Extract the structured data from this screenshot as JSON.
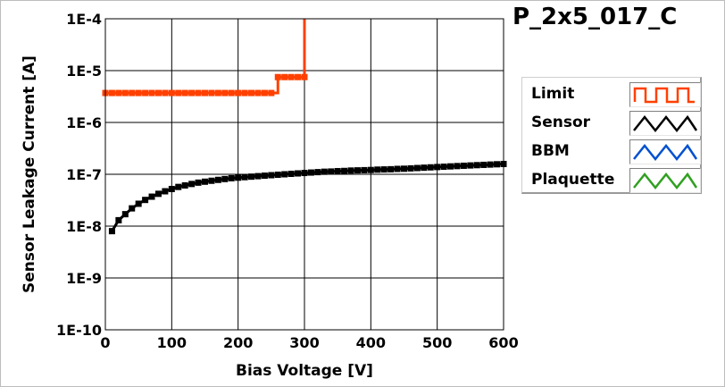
{
  "chart_data": {
    "type": "line",
    "title": "P_2x5_017_C",
    "xlabel": "Bias Voltage [V]",
    "ylabel": "Sensor Leakage Current [A]",
    "xlim": [
      0,
      600
    ],
    "ylim": [
      1e-10,
      0.0001
    ],
    "yscale": "log",
    "grid": true,
    "legend_position": "right",
    "x_ticks": [
      0,
      100,
      200,
      300,
      400,
      500,
      600
    ],
    "x_tick_labels": [
      "0",
      "100",
      "200",
      "300",
      "400",
      "500",
      "600"
    ],
    "y_ticks": [
      1e-10,
      1e-09,
      1e-08,
      1e-07,
      1e-06,
      1e-05,
      0.0001
    ],
    "y_tick_labels": [
      "1E-10",
      "1E-9",
      "1E-8",
      "1E-7",
      "1E-6",
      "1E-5",
      "1E-4"
    ],
    "series": [
      {
        "name": "Limit",
        "color": "#ff4000",
        "style": "step",
        "points": [
          [
            0,
            3.7e-06
          ],
          [
            10,
            3.7e-06
          ],
          [
            20,
            3.7e-06
          ],
          [
            30,
            3.7e-06
          ],
          [
            40,
            3.7e-06
          ],
          [
            50,
            3.7e-06
          ],
          [
            60,
            3.7e-06
          ],
          [
            70,
            3.7e-06
          ],
          [
            80,
            3.7e-06
          ],
          [
            90,
            3.7e-06
          ],
          [
            100,
            3.7e-06
          ],
          [
            110,
            3.7e-06
          ],
          [
            120,
            3.7e-06
          ],
          [
            130,
            3.7e-06
          ],
          [
            140,
            3.7e-06
          ],
          [
            150,
            3.7e-06
          ],
          [
            160,
            3.7e-06
          ],
          [
            170,
            3.7e-06
          ],
          [
            180,
            3.7e-06
          ],
          [
            190,
            3.7e-06
          ],
          [
            200,
            3.7e-06
          ],
          [
            210,
            3.7e-06
          ],
          [
            220,
            3.7e-06
          ],
          [
            230,
            3.7e-06
          ],
          [
            240,
            3.7e-06
          ],
          [
            250,
            3.7e-06
          ],
          [
            260,
            7.5e-06
          ],
          [
            270,
            7.5e-06
          ],
          [
            280,
            7.5e-06
          ],
          [
            290,
            7.5e-06
          ],
          [
            300,
            7.5e-06
          ],
          [
            300,
            0.0001
          ]
        ]
      },
      {
        "name": "Sensor",
        "color": "#000000",
        "x": [
          10,
          20,
          30,
          40,
          50,
          60,
          70,
          80,
          90,
          100,
          110,
          120,
          130,
          140,
          150,
          160,
          170,
          180,
          190,
          200,
          210,
          220,
          230,
          240,
          250,
          260,
          270,
          280,
          290,
          300,
          310,
          320,
          330,
          340,
          350,
          360,
          370,
          380,
          390,
          400,
          410,
          420,
          430,
          440,
          450,
          460,
          470,
          480,
          490,
          500,
          510,
          520,
          530,
          540,
          550,
          560,
          570,
          580,
          590,
          600
        ],
        "y": [
          8e-09,
          1.3e-08,
          1.7e-08,
          2.2e-08,
          2.7e-08,
          3.2e-08,
          3.7e-08,
          4.2e-08,
          4.7e-08,
          5.2e-08,
          5.7e-08,
          6.1e-08,
          6.5e-08,
          6.9e-08,
          7.2e-08,
          7.5e-08,
          7.8e-08,
          8.1e-08,
          8.4e-08,
          8.6e-08,
          8.8e-08,
          9e-08,
          9.2e-08,
          9.4e-08,
          9.6e-08,
          9.8e-08,
          1e-07,
          1.02e-07,
          1.04e-07,
          1.06e-07,
          1.08e-07,
          1.1e-07,
          1.12e-07,
          1.13e-07,
          1.15e-07,
          1.16e-07,
          1.18e-07,
          1.19e-07,
          1.2e-07,
          1.21e-07,
          1.23e-07,
          1.24e-07,
          1.25e-07,
          1.27e-07,
          1.28e-07,
          1.3e-07,
          1.32e-07,
          1.34e-07,
          1.36e-07,
          1.38e-07,
          1.4e-07,
          1.42e-07,
          1.44e-07,
          1.46e-07,
          1.48e-07,
          1.5e-07,
          1.52e-07,
          1.54e-07,
          1.56e-07,
          1.58e-07
        ]
      },
      {
        "name": "BBM",
        "color": "#0050d0",
        "x": [],
        "y": []
      },
      {
        "name": "Plaquette",
        "color": "#30a020",
        "x": [],
        "y": []
      }
    ]
  }
}
